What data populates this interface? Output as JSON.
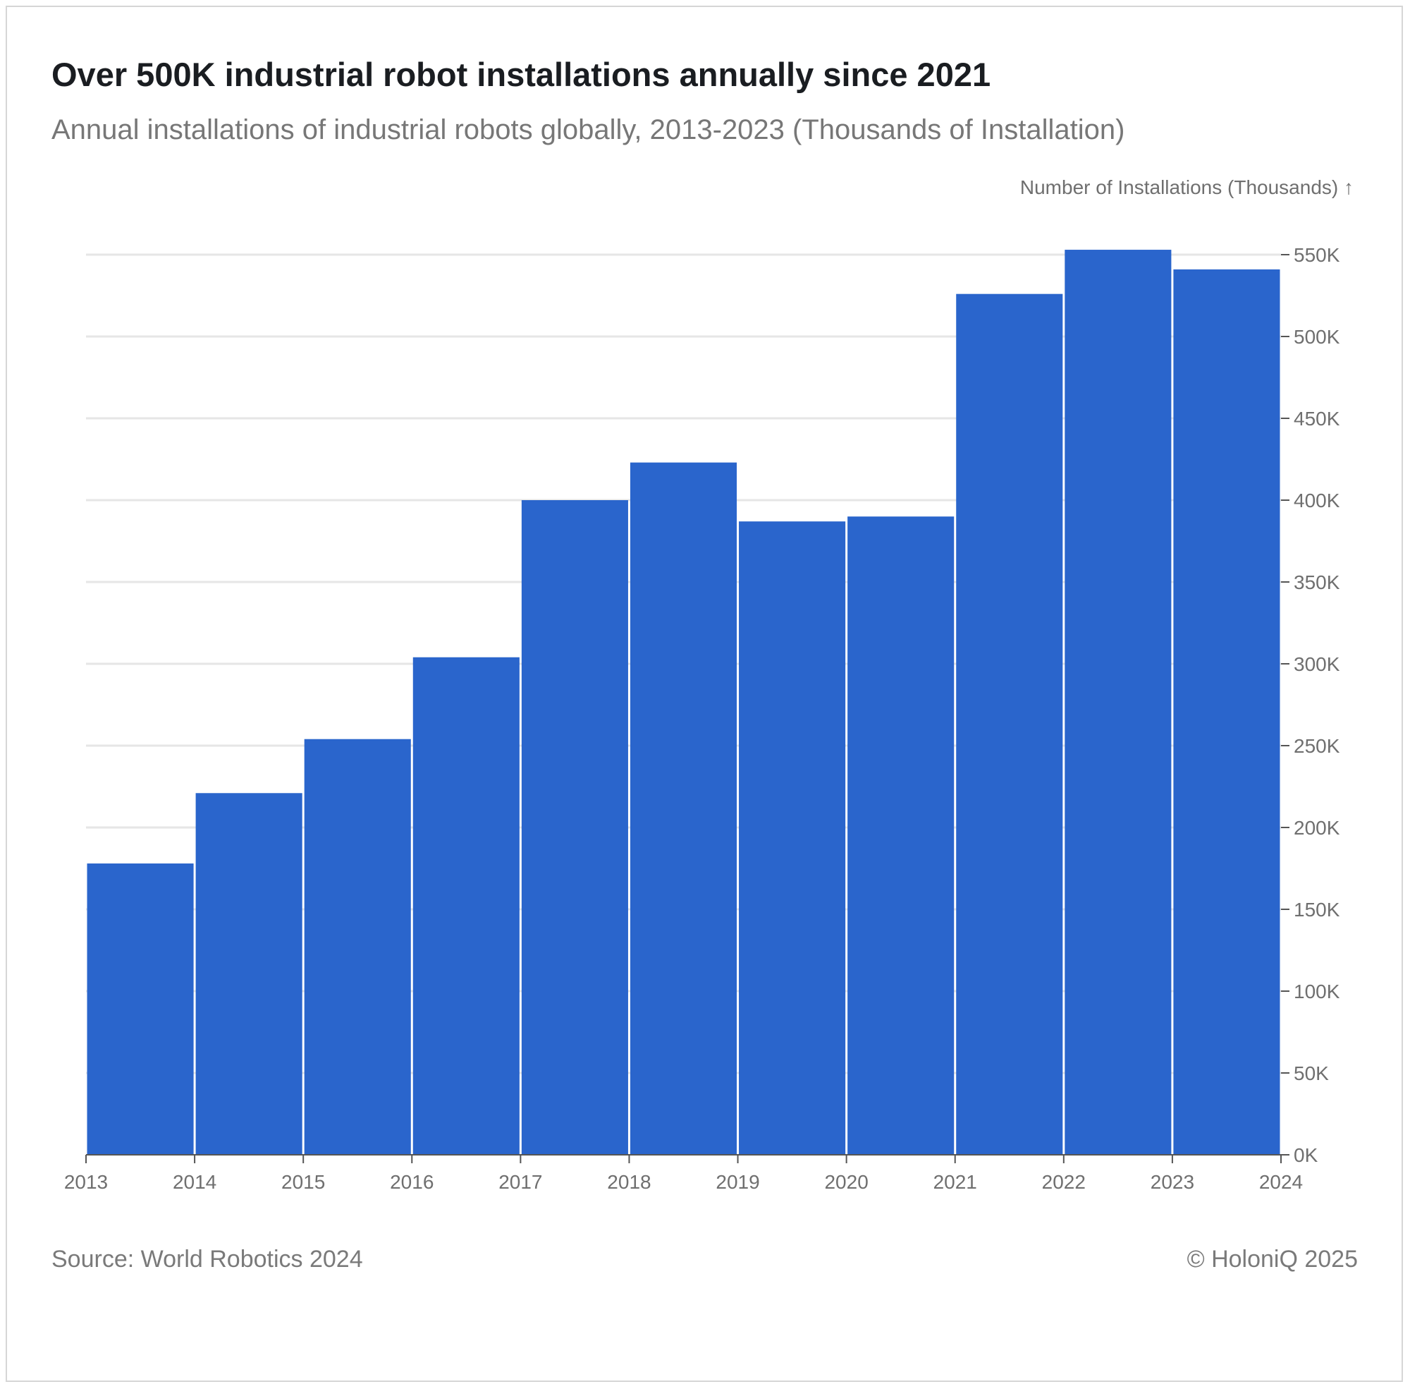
{
  "title": "Over 500K industrial robot installations annually since 2021",
  "subtitle": "Annual installations of industrial robots globally, 2013-2023 (Thousands of Installation)",
  "source": "Source: World Robotics 2024",
  "copyright": "© HoloniQ 2025",
  "colors": {
    "bar": "#2a65cc",
    "grid": "#e6e6e6",
    "axis": "#555555"
  },
  "chart_data": {
    "type": "bar",
    "title": "Over 500K industrial robot installations annually since 2021",
    "ylabel": "Number of Installations (Thousands) ↑",
    "xlabel": "",
    "bins": [
      2013,
      2014,
      2015,
      2016,
      2017,
      2018,
      2019,
      2020,
      2021,
      2022,
      2023,
      2024
    ],
    "categories": [
      "2013",
      "2014",
      "2015",
      "2016",
      "2017",
      "2018",
      "2019",
      "2020",
      "2021",
      "2022",
      "2023"
    ],
    "values": [
      178,
      221,
      254,
      304,
      400,
      423,
      387,
      390,
      526,
      553,
      541
    ],
    "ylim": [
      0,
      550
    ],
    "yticks": [
      0,
      50,
      100,
      150,
      200,
      250,
      300,
      350,
      400,
      450,
      500,
      550
    ],
    "ytick_labels": [
      "0K",
      "50K",
      "100K",
      "150K",
      "200K",
      "250K",
      "300K",
      "350K",
      "400K",
      "450K",
      "500K",
      "550K"
    ],
    "xtick_labels": [
      "2013",
      "2014",
      "2015",
      "2016",
      "2017",
      "2018",
      "2019",
      "2020",
      "2021",
      "2022",
      "2023",
      "2024"
    ],
    "grid": true,
    "y_axis_side": "right"
  }
}
